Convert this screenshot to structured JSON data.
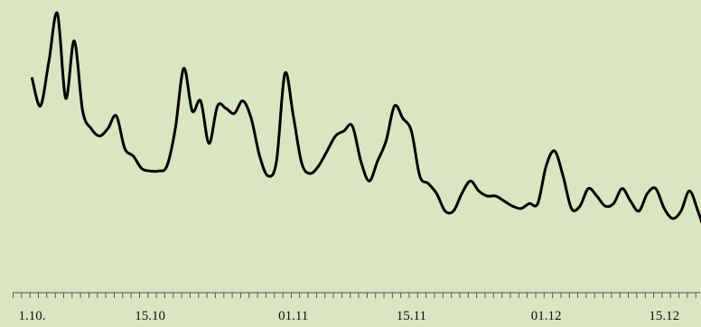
{
  "colors": {
    "background": "#dbe5c1",
    "line": "#000000",
    "axis": "#555555"
  },
  "chart_data": {
    "type": "line",
    "title": "",
    "xlabel": "",
    "ylabel": "",
    "grid": false,
    "legend": "none",
    "x_tick_labels": [
      {
        "label": "1.10.",
        "day": 1
      },
      {
        "label": "15.10",
        "day": 15
      },
      {
        "label": "01.11",
        "day": 32
      },
      {
        "label": "15.11",
        "day": 46
      },
      {
        "label": "01.12",
        "day": 62
      },
      {
        "label": "15.12",
        "day": 76
      }
    ],
    "xlim": [
      0,
      82
    ],
    "ylim": [
      0,
      100
    ],
    "series": [
      {
        "x": [
          1,
          2,
          3,
          4,
          5,
          6,
          7,
          8,
          9,
          10,
          11,
          12,
          13,
          14,
          15,
          16,
          17,
          18,
          19,
          20,
          21,
          22,
          23,
          24,
          25,
          26,
          27,
          28,
          29,
          30,
          31,
          32,
          33,
          34,
          35,
          36,
          37,
          38,
          39,
          40,
          41,
          42,
          43,
          44,
          45,
          46,
          47,
          48,
          49,
          50,
          51,
          52,
          53,
          54,
          55,
          56,
          57,
          58,
          59,
          60,
          61,
          62,
          63,
          64,
          65,
          66,
          67,
          68,
          69,
          70,
          71,
          72,
          73,
          74,
          75,
          76,
          77,
          78,
          79,
          80,
          81
        ],
        "values": [
          73,
          62,
          80,
          99,
          65,
          88,
          60,
          53,
          50,
          53,
          58,
          45,
          42,
          37,
          36,
          36,
          38,
          53,
          77,
          60,
          64,
          47,
          62,
          61,
          59,
          64,
          57,
          42,
          34,
          40,
          75,
          58,
          39,
          35,
          38,
          44,
          50,
          52,
          54,
          40,
          32,
          40,
          48,
          62,
          57,
          52,
          34,
          31,
          27,
          20,
          20,
          27,
          32,
          28,
          26,
          26,
          24,
          22,
          21,
          23,
          23,
          38,
          44,
          34,
          21,
          22,
          29,
          26,
          22,
          23,
          29,
          24,
          20,
          27,
          29,
          21,
          17,
          20,
          28,
          20,
          10
        ]
      }
    ]
  }
}
